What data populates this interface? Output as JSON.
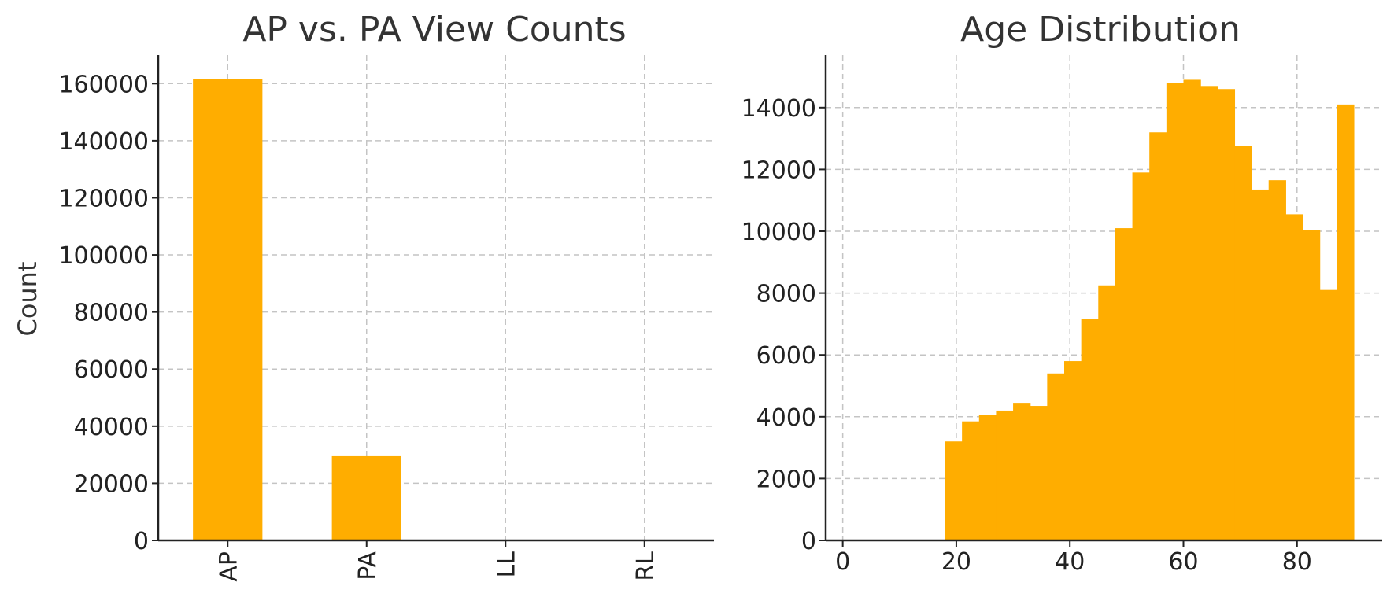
{
  "chart_data": [
    {
      "type": "bar",
      "title": "AP vs. PA View Counts",
      "xlabel": "",
      "ylabel": "Count",
      "categories": [
        "AP",
        "PA",
        "LL",
        "RL"
      ],
      "values": [
        161500,
        29500,
        0,
        0
      ],
      "ylim": [
        0,
        170000
      ],
      "yticks": [
        0,
        20000,
        40000,
        60000,
        80000,
        100000,
        120000,
        140000,
        160000
      ],
      "grid": true,
      "legend": "none",
      "color": "#FFAD00"
    },
    {
      "type": "bar",
      "title": "Age Distribution",
      "xlabel": "",
      "ylabel": "",
      "bin_edges": [
        18,
        21,
        24,
        27,
        30,
        33,
        36,
        39,
        42,
        45,
        48,
        51,
        54,
        57,
        60,
        63,
        66,
        69,
        72,
        75,
        78,
        81,
        84,
        87,
        90
      ],
      "values": [
        3200,
        3850,
        4050,
        4200,
        4450,
        4350,
        5400,
        5800,
        7150,
        8250,
        10100,
        11900,
        13200,
        14800,
        14900,
        14700,
        14600,
        12750,
        11350,
        11650,
        10550,
        10050,
        8100,
        14100
      ],
      "xlim": [
        -3,
        95
      ],
      "xticks": [
        0,
        20,
        40,
        60,
        80
      ],
      "ylim": [
        0,
        15700
      ],
      "yticks": [
        0,
        2000,
        4000,
        6000,
        8000,
        10000,
        12000,
        14000
      ],
      "grid": true,
      "legend": "none",
      "color": "#FFAD00"
    }
  ]
}
